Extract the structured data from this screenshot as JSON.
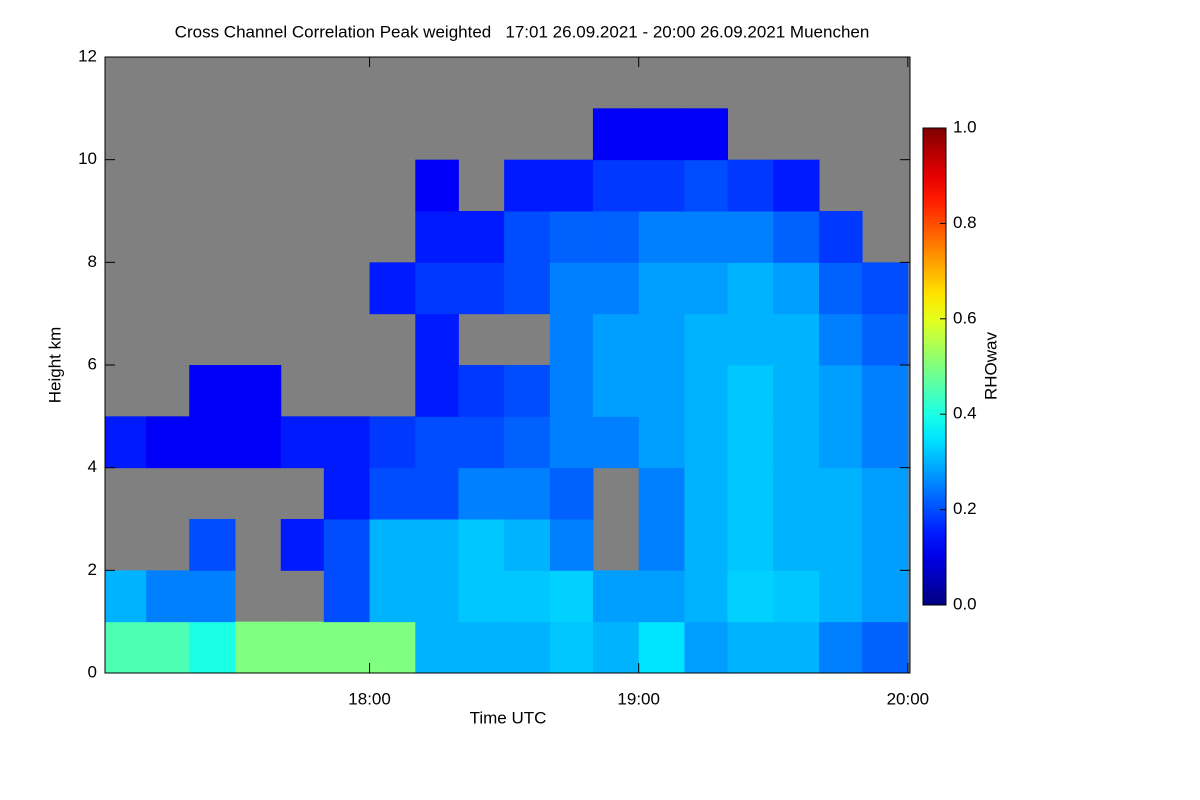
{
  "chart_data": {
    "type": "heatmap",
    "title": "Cross Channel Correlation Peak weighted   17:01 26.09.2021 - 20:00 26.09.2021 Muenchen",
    "x_label": "Time UTC",
    "y_label": "Height km",
    "colorbar_label": "RHOwav",
    "colormap": "jet",
    "missing_color": "#808080",
    "xlim": [
      17.017,
      20.008
    ],
    "ylim": [
      0,
      12
    ],
    "xticks": [
      {
        "value": 18,
        "label": "18:00"
      },
      {
        "value": 19,
        "label": "19:00"
      },
      {
        "value": 20,
        "label": "20:00"
      }
    ],
    "yticks": [
      0,
      2,
      4,
      6,
      8,
      10,
      12
    ],
    "clim": [
      0,
      1
    ],
    "cticks": [
      {
        "value": 0,
        "label": "0.0"
      },
      {
        "value": 0.2,
        "label": "0.2"
      },
      {
        "value": 0.4,
        "label": "0.4"
      },
      {
        "value": 0.6,
        "label": "0.6"
      },
      {
        "value": 0.8,
        "label": "0.8"
      },
      {
        "value": 1,
        "label": "1.0"
      }
    ],
    "xbins": [
      17.0,
      17.17,
      17.33,
      17.5,
      17.67,
      17.83,
      18.0,
      18.17,
      18.33,
      18.5,
      18.67,
      18.83,
      19.0,
      19.17,
      19.33,
      19.5,
      19.67,
      19.83,
      20.0
    ],
    "ybins": [
      0,
      1,
      2,
      3,
      4,
      5,
      6,
      7,
      8,
      9,
      10,
      11,
      12
    ],
    "values": [
      [
        0.45,
        0.45,
        0.4,
        0.5,
        0.5,
        0.5,
        0.5,
        0.3,
        0.3,
        0.3,
        0.32,
        0.3,
        0.35,
        0.28,
        0.3,
        0.3,
        0.25,
        0.22
      ],
      [
        0.3,
        0.25,
        0.25,
        null,
        null,
        0.2,
        0.3,
        0.3,
        0.32,
        0.32,
        0.33,
        0.28,
        0.28,
        0.3,
        0.33,
        0.32,
        0.3,
        0.28
      ],
      [
        null,
        null,
        0.2,
        null,
        0.15,
        0.2,
        0.3,
        0.3,
        0.32,
        0.3,
        0.25,
        null,
        0.25,
        0.3,
        0.32,
        0.3,
        0.3,
        0.28
      ],
      [
        null,
        null,
        null,
        null,
        null,
        0.15,
        0.2,
        0.2,
        0.25,
        0.25,
        0.22,
        null,
        0.25,
        0.3,
        0.32,
        0.3,
        0.3,
        0.28
      ],
      [
        0.15,
        0.12,
        0.12,
        0.12,
        0.15,
        0.15,
        0.18,
        0.2,
        0.2,
        0.22,
        0.25,
        0.25,
        0.28,
        0.3,
        0.32,
        0.3,
        0.28,
        0.25
      ],
      [
        null,
        null,
        0.12,
        0.12,
        null,
        null,
        null,
        0.15,
        0.18,
        0.2,
        0.25,
        0.28,
        0.28,
        0.3,
        0.32,
        0.3,
        0.28,
        0.25
      ],
      [
        null,
        null,
        null,
        null,
        null,
        null,
        null,
        0.15,
        null,
        null,
        0.25,
        0.28,
        0.28,
        0.3,
        0.3,
        0.3,
        0.25,
        0.22
      ],
      [
        null,
        null,
        null,
        null,
        null,
        null,
        0.15,
        0.18,
        0.18,
        0.2,
        0.25,
        0.25,
        0.28,
        0.28,
        0.3,
        0.28,
        0.22,
        0.2
      ],
      [
        null,
        null,
        null,
        null,
        null,
        null,
        null,
        0.15,
        0.15,
        0.2,
        0.22,
        0.22,
        0.25,
        0.25,
        0.25,
        0.22,
        0.18,
        null
      ],
      [
        null,
        null,
        null,
        null,
        null,
        null,
        null,
        0.12,
        null,
        0.15,
        0.15,
        0.18,
        0.18,
        0.2,
        0.18,
        0.15,
        null,
        null
      ],
      [
        null,
        null,
        null,
        null,
        null,
        null,
        null,
        null,
        null,
        null,
        null,
        0.12,
        0.12,
        0.12,
        null,
        null,
        null,
        null
      ],
      [
        null,
        null,
        null,
        null,
        null,
        null,
        null,
        null,
        null,
        null,
        null,
        null,
        null,
        null,
        null,
        null,
        null,
        null
      ]
    ]
  }
}
